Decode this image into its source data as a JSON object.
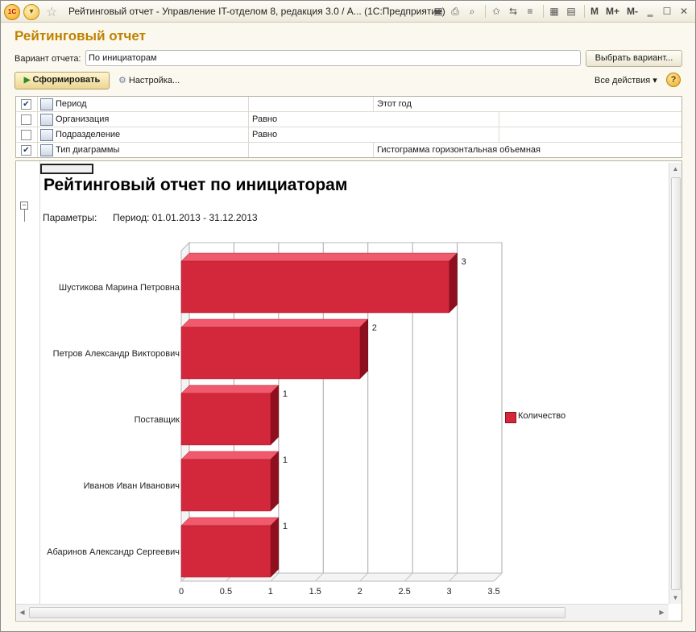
{
  "window": {
    "title": "Рейтинговый отчет - Управление IT-отделом 8, редакция 3.0 / А...  (1С:Предприятие)",
    "logo_text": "1С",
    "toolbar_labels": {
      "m": "M",
      "m_plus": "M+",
      "m_minus": "M-"
    }
  },
  "form": {
    "title": "Рейтинговый отчет",
    "variant_label": "Вариант отчета:",
    "variant_value": "По инициаторам",
    "select_variant": "Выбрать вариант...",
    "generate": "Сформировать",
    "settings": "Настройка...",
    "all_actions": "Все действия",
    "help": "?"
  },
  "settings_rows": [
    {
      "checked": true,
      "name": "Период",
      "condition": "",
      "value": "Этот год"
    },
    {
      "checked": false,
      "name": "Организация",
      "condition": "Равно",
      "value": ""
    },
    {
      "checked": false,
      "name": "Подразделение",
      "condition": "Равно",
      "value": ""
    },
    {
      "checked": true,
      "name": "Тип диаграммы",
      "condition": "",
      "value": "Гистограмма горизонтальная объемная"
    }
  ],
  "report": {
    "title": "Рейтинговый отчет по инициаторам",
    "params_label": "Параметры:",
    "params_value": "Период: 01.01.2013 - 31.12.2013"
  },
  "chart_data": {
    "type": "bar",
    "orientation": "horizontal",
    "style": "3d",
    "categories": [
      "Шустикова Марина Петровна",
      "Петров Александр Викторович",
      "Поставщик",
      "Иванов Иван Иванович",
      "Абаринов Александр Сергеевич"
    ],
    "series": [
      {
        "name": "Количество",
        "values": [
          3,
          2,
          1,
          1,
          1
        ],
        "color": "#d3283b"
      }
    ],
    "xlim": [
      0,
      3.5
    ],
    "xticks": [
      "0",
      "0.5",
      "1",
      "1.5",
      "2",
      "2.5",
      "3",
      "3.5"
    ],
    "grid": true,
    "legend": "right"
  },
  "colors": {
    "accent": "#c08200",
    "bar": "#d3283b"
  }
}
